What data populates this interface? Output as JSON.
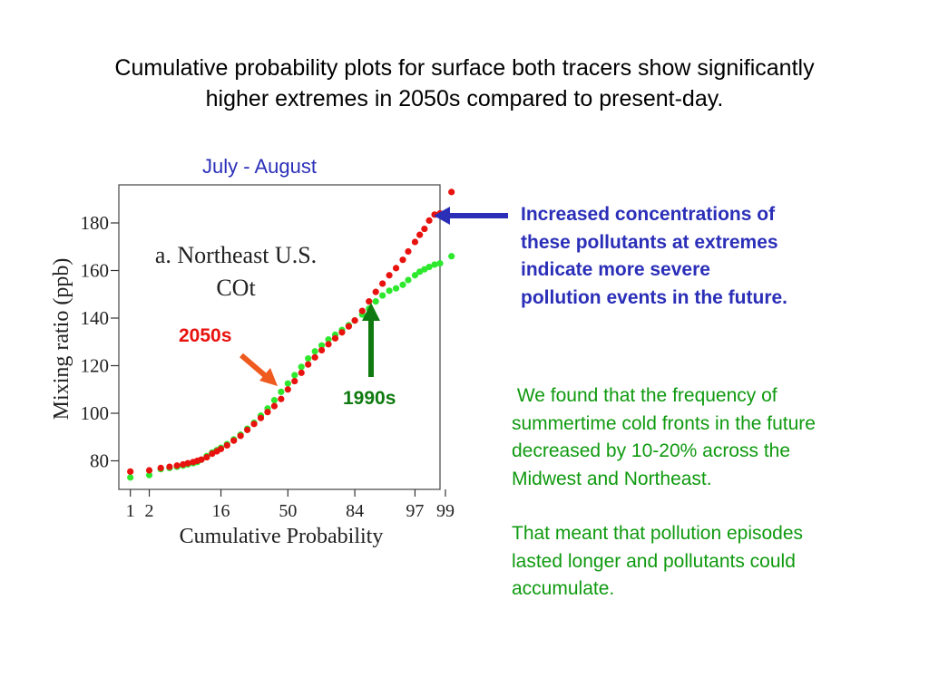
{
  "slide": {
    "title_lines": [
      "Cumulative probability plots for surface both tracers show significantly",
      "higher extremes in 2050s compared to present-day."
    ],
    "period": "July - August",
    "callout_lines": [
      "Increased concentrations of",
      "these pollutants at extremes",
      "indicate more severe",
      "pollution events in the future."
    ],
    "findings_p1_lines": [
      " We found that the frequency of",
      "summertime cold fronts in the future",
      "decreased by 10-20% across the",
      "Midwest and Northeast."
    ],
    "findings_p2_lines": [
      "That meant that pollution episodes",
      "lasted longer and pollutants could",
      "accumulate."
    ],
    "label_2050s": "2050s",
    "label_1990s": "1990s",
    "colors": {
      "red": "#e8120e",
      "green": "#2ee82e",
      "blue": "#2b2fb8",
      "dark_green": "#0f7a0f",
      "orange": "#ef5a1e"
    }
  },
  "chart_data": {
    "type": "scatter",
    "title_lines": [
      "a. Northeast U.S.",
      "COt"
    ],
    "xlabel": "Cumulative Probability",
    "ylabel": "Mixing ratio (ppb)",
    "ylim": [
      68,
      196
    ],
    "yticks": [
      80,
      100,
      120,
      140,
      160,
      180
    ],
    "xlim": [
      -2.5,
      2.25
    ],
    "xticks": [
      {
        "label": "1",
        "z": -2.33
      },
      {
        "label": "2",
        "z": -2.05
      },
      {
        "label": "16",
        "z": -0.99
      },
      {
        "label": "50",
        "z": 0.0
      },
      {
        "label": "84",
        "z": 0.99
      },
      {
        "label": "97",
        "z": 1.88
      },
      {
        "label": "99",
        "z": 2.33
      }
    ],
    "grid": false,
    "series": [
      {
        "name": "2050s",
        "color": "#e8120e",
        "points": [
          [
            -2.33,
            75.5
          ],
          [
            -2.05,
            76
          ],
          [
            -1.88,
            77
          ],
          [
            -1.75,
            77.5
          ],
          [
            -1.64,
            78
          ],
          [
            -1.55,
            78.5
          ],
          [
            -1.48,
            79
          ],
          [
            -1.4,
            79.5
          ],
          [
            -1.34,
            80
          ],
          [
            -1.28,
            80.5
          ],
          [
            -1.2,
            81.5
          ],
          [
            -1.12,
            83
          ],
          [
            -1.05,
            84
          ],
          [
            -0.99,
            85
          ],
          [
            -0.9,
            86.5
          ],
          [
            -0.8,
            88.5
          ],
          [
            -0.7,
            90.5
          ],
          [
            -0.6,
            93
          ],
          [
            -0.5,
            95.5
          ],
          [
            -0.4,
            98
          ],
          [
            -0.3,
            100.5
          ],
          [
            -0.2,
            103
          ],
          [
            -0.1,
            106
          ],
          [
            0.0,
            110
          ],
          [
            0.1,
            113.5
          ],
          [
            0.2,
            117
          ],
          [
            0.3,
            120.5
          ],
          [
            0.4,
            123.5
          ],
          [
            0.5,
            126.5
          ],
          [
            0.6,
            129
          ],
          [
            0.7,
            131.5
          ],
          [
            0.8,
            134
          ],
          [
            0.9,
            136.5
          ],
          [
            0.99,
            139
          ],
          [
            1.1,
            143
          ],
          [
            1.2,
            147
          ],
          [
            1.3,
            151
          ],
          [
            1.4,
            154.5
          ],
          [
            1.5,
            158
          ],
          [
            1.6,
            161
          ],
          [
            1.7,
            164.5
          ],
          [
            1.78,
            168
          ],
          [
            1.88,
            172
          ],
          [
            1.95,
            175
          ],
          [
            2.02,
            177.5
          ],
          [
            2.09,
            181
          ],
          [
            2.17,
            183.5
          ],
          [
            2.25,
            184
          ],
          [
            2.42,
            193
          ]
        ]
      },
      {
        "name": "1990s",
        "color": "#2ee82e",
        "points": [
          [
            -2.33,
            73
          ],
          [
            -2.05,
            74
          ],
          [
            -1.88,
            76.5
          ],
          [
            -1.75,
            77
          ],
          [
            -1.64,
            77.5
          ],
          [
            -1.55,
            78
          ],
          [
            -1.48,
            78.5
          ],
          [
            -1.4,
            79
          ],
          [
            -1.34,
            79.5
          ],
          [
            -1.28,
            80.5
          ],
          [
            -1.2,
            82
          ],
          [
            -1.12,
            83.5
          ],
          [
            -1.05,
            84.5
          ],
          [
            -0.99,
            85.5
          ],
          [
            -0.9,
            87
          ],
          [
            -0.8,
            89
          ],
          [
            -0.7,
            91
          ],
          [
            -0.6,
            93.5
          ],
          [
            -0.5,
            96
          ],
          [
            -0.4,
            99
          ],
          [
            -0.3,
            102
          ],
          [
            -0.2,
            105.5
          ],
          [
            -0.1,
            109
          ],
          [
            0.0,
            112.5
          ],
          [
            0.1,
            116
          ],
          [
            0.2,
            119.5
          ],
          [
            0.3,
            123
          ],
          [
            0.4,
            126
          ],
          [
            0.5,
            128.5
          ],
          [
            0.6,
            131
          ],
          [
            0.7,
            133
          ],
          [
            0.8,
            135
          ],
          [
            0.9,
            137
          ],
          [
            0.99,
            139
          ],
          [
            1.1,
            141.5
          ],
          [
            1.2,
            144
          ],
          [
            1.3,
            147
          ],
          [
            1.4,
            149.5
          ],
          [
            1.5,
            151.5
          ],
          [
            1.6,
            152.5
          ],
          [
            1.7,
            154
          ],
          [
            1.78,
            156
          ],
          [
            1.88,
            158
          ],
          [
            1.95,
            159.5
          ],
          [
            2.02,
            160.5
          ],
          [
            2.09,
            161.5
          ],
          [
            2.17,
            162.5
          ],
          [
            2.25,
            163
          ],
          [
            2.42,
            166
          ]
        ]
      }
    ]
  }
}
